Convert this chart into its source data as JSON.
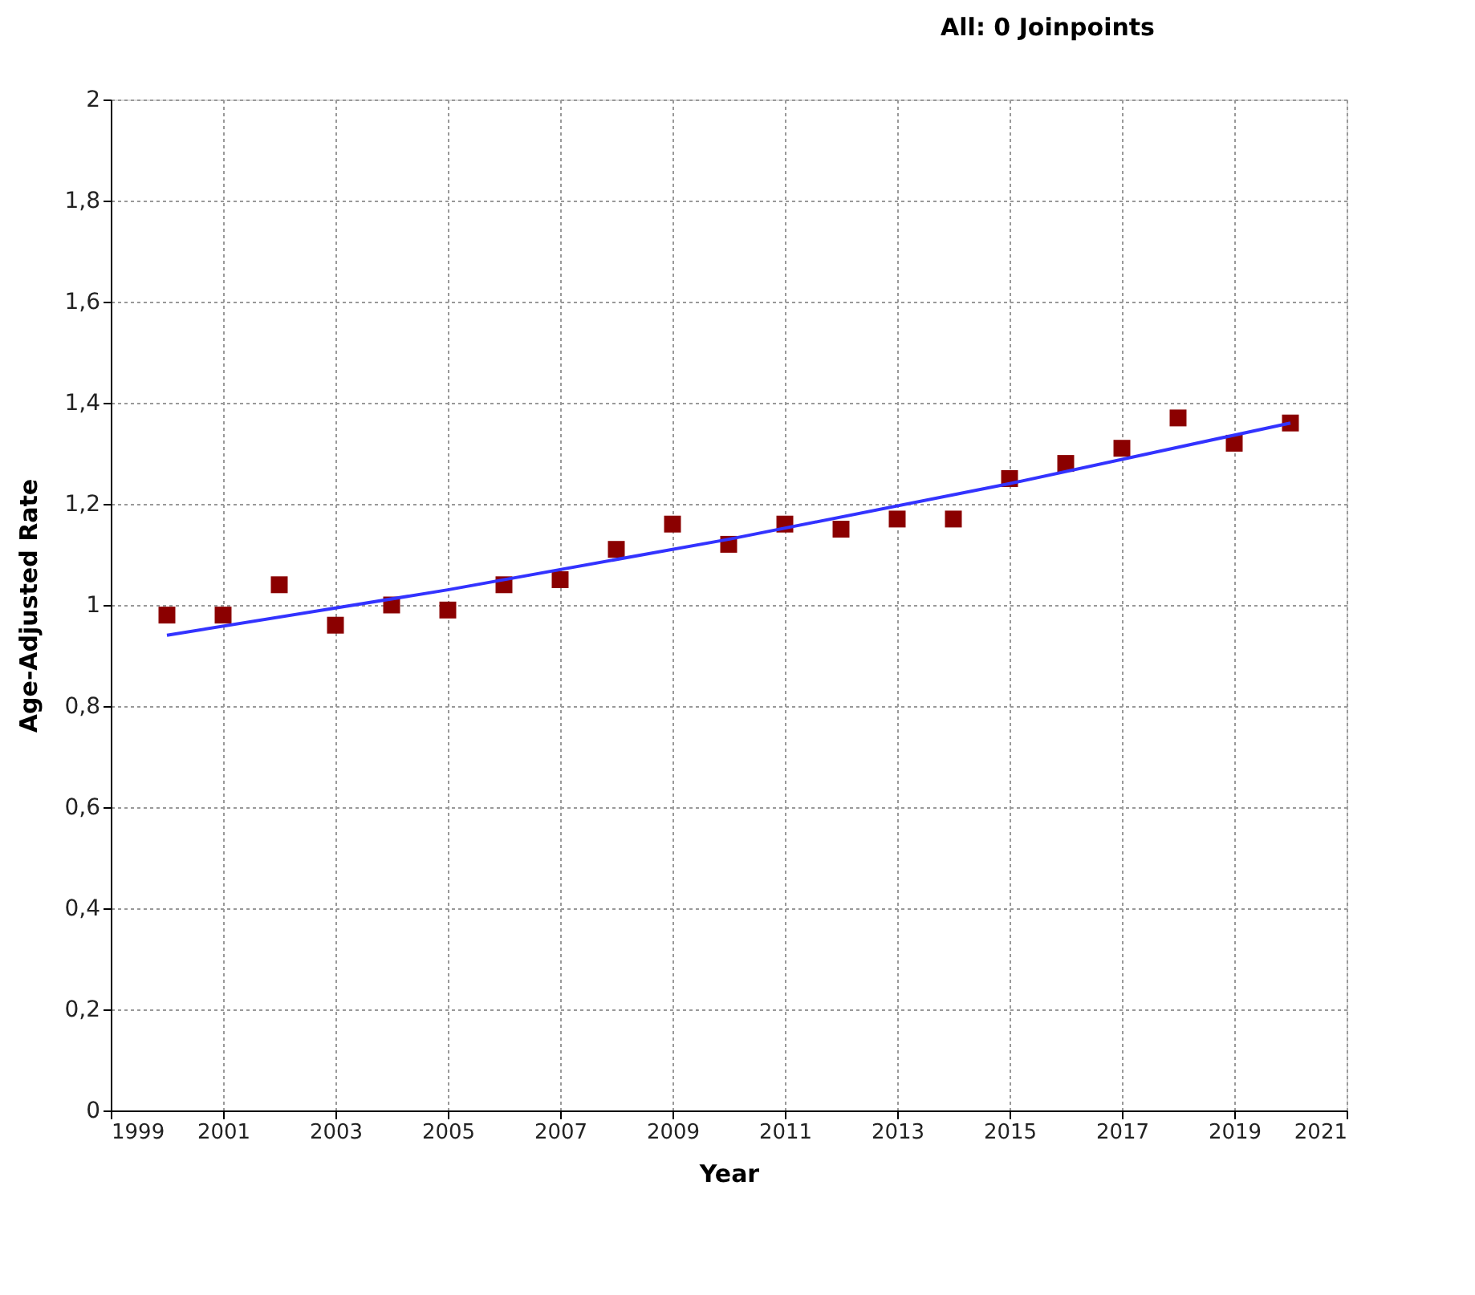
{
  "chart_data": {
    "type": "scatter",
    "title": "All: 0 Joinpoints",
    "xlabel": "Year",
    "ylabel": "Age-Adjusted Rate",
    "x": [
      2000,
      2001,
      2002,
      2003,
      2004,
      2005,
      2006,
      2007,
      2008,
      2009,
      2010,
      2011,
      2012,
      2013,
      2014,
      2015,
      2016,
      2017,
      2018,
      2019,
      2020
    ],
    "series": [
      {
        "color": "#8b0000",
        "marker": "square",
        "values": [
          0.98,
          0.98,
          1.04,
          0.96,
          1.0,
          0.99,
          1.04,
          1.05,
          1.11,
          1.16,
          1.12,
          1.16,
          1.15,
          1.17,
          1.17,
          1.25,
          1.28,
          1.31,
          1.37,
          1.32,
          1.36
        ]
      },
      {
        "type": "line",
        "color": "#3333ff",
        "x": [
          2000,
          2005,
          2010,
          2015,
          2020
        ],
        "values": [
          0.94,
          1.03,
          1.13,
          1.24,
          1.36
        ],
        "line_style": "solid"
      }
    ],
    "xlim": [
      1999,
      2021
    ],
    "xticks": [
      1999,
      2001,
      2003,
      2005,
      2007,
      2009,
      2011,
      2013,
      2015,
      2017,
      2019,
      2021
    ],
    "ylim": [
      0,
      2
    ],
    "yticks": [
      0,
      {
        "value": 0.2,
        "label": "0,2"
      },
      {
        "value": 0.4,
        "label": "0,4"
      },
      {
        "value": 0.6,
        "label": "0,6"
      },
      {
        "value": 0.8,
        "label": "0,8"
      },
      1,
      {
        "value": 1.2,
        "label": "1,2"
      },
      {
        "value": 1.4,
        "label": "1,4"
      },
      {
        "value": 1.6,
        "label": "1,6"
      },
      {
        "value": 1.8,
        "label": "1,8"
      },
      2
    ],
    "grid": true
  }
}
